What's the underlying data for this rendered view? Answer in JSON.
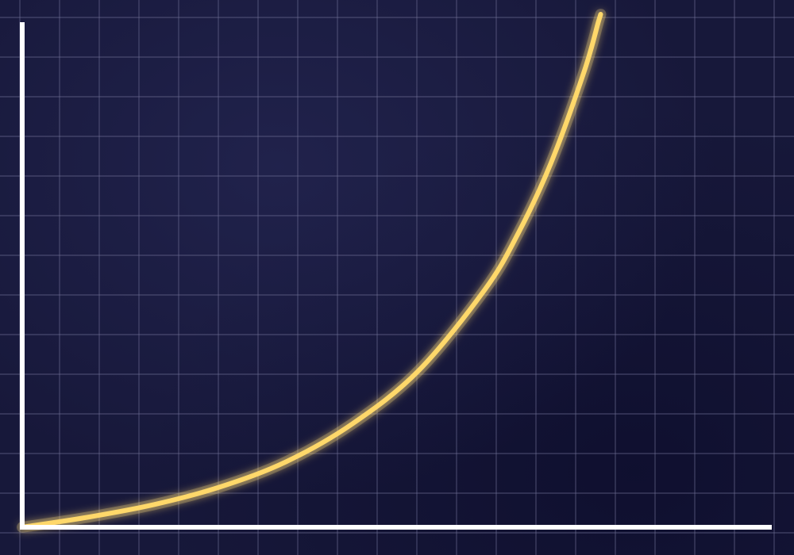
{
  "colors": {
    "background": "#17183a",
    "grid": "#6f7096",
    "axis": "#ffffff",
    "curve": "#ffd86b",
    "curve_glow": "#ffe38a"
  },
  "chart_data": {
    "type": "line",
    "title": "",
    "xlabel": "",
    "ylabel": "",
    "grid": true,
    "legend": "none",
    "xlim": [
      0,
      10
    ],
    "ylim": [
      0,
      10
    ],
    "series": [
      {
        "points": [
          [
            0.0,
            0.0
          ],
          [
            1.0,
            0.2
          ],
          [
            2.0,
            0.45
          ],
          [
            3.0,
            0.8
          ],
          [
            4.0,
            1.3
          ],
          [
            5.0,
            2.05
          ],
          [
            6.0,
            3.1
          ],
          [
            7.0,
            4.7
          ],
          [
            7.5,
            5.8
          ],
          [
            8.0,
            7.2
          ],
          [
            8.5,
            9.0
          ],
          [
            8.72,
            10.0
          ]
        ]
      }
    ]
  }
}
